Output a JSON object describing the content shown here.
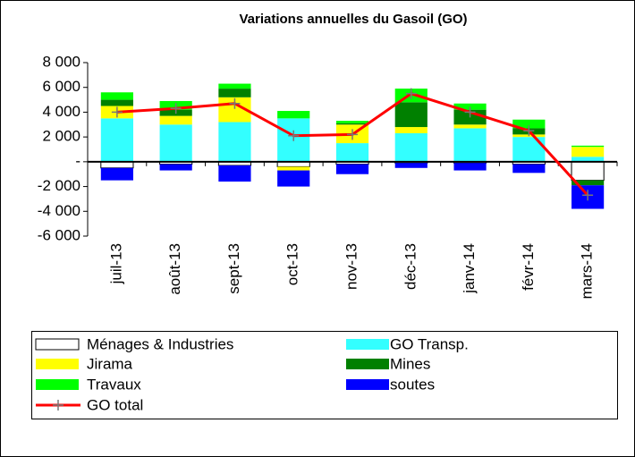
{
  "chart_data": {
    "type": "bar",
    "stacked": true,
    "title": "Variations annuelles du Gasoil (GO)",
    "categories": [
      "juil-13",
      "août-13",
      "sept-13",
      "oct-13",
      "nov-13",
      "déc-13",
      "janv-14",
      "févr-14",
      "mars-14"
    ],
    "series": [
      {
        "name": "Ménages & Industries",
        "color": "#ffffff",
        "values": [
          -500,
          -200,
          -300,
          -400,
          -200,
          -100,
          -100,
          -200,
          -1500
        ]
      },
      {
        "name": "GO Transp.",
        "color": "#33ffff",
        "values": [
          3500,
          3000,
          3200,
          3500,
          1500,
          2300,
          2700,
          2000,
          400
        ]
      },
      {
        "name": "Jirama",
        "color": "#ffff00",
        "values": [
          1000,
          700,
          2000,
          -300,
          1500,
          500,
          300,
          200,
          800
        ]
      },
      {
        "name": "Mines",
        "color": "#008000",
        "values": [
          500,
          500,
          700,
          0,
          100,
          2000,
          1200,
          500,
          -400
        ]
      },
      {
        "name": "Travaux",
        "color": "#00ff00",
        "values": [
          600,
          700,
          400,
          600,
          200,
          1100,
          500,
          700,
          100
        ]
      },
      {
        "name": "soutes",
        "color": "#0000ff",
        "values": [
          -1000,
          -500,
          -1300,
          -1300,
          -800,
          -400,
          -600,
          -700,
          -1900
        ]
      },
      {
        "name": "GO total",
        "color": "#ff0000",
        "type": "line",
        "values": [
          4000,
          4300,
          4700,
          2100,
          2200,
          5500,
          4000,
          2500,
          -2700
        ]
      }
    ],
    "ylim": [
      -6000,
      8000
    ],
    "yticks": [
      {
        "value": -6000,
        "label": "-6 000"
      },
      {
        "value": -4000,
        "label": "-4 000"
      },
      {
        "value": -2000,
        "label": "-2 000"
      },
      {
        "value": 0,
        "label": "-"
      },
      {
        "value": 2000,
        "label": "2 000"
      },
      {
        "value": 4000,
        "label": "4 000"
      },
      {
        "value": 6000,
        "label": "6 000"
      },
      {
        "value": 8000,
        "label": "8 000"
      }
    ],
    "grid": false
  }
}
